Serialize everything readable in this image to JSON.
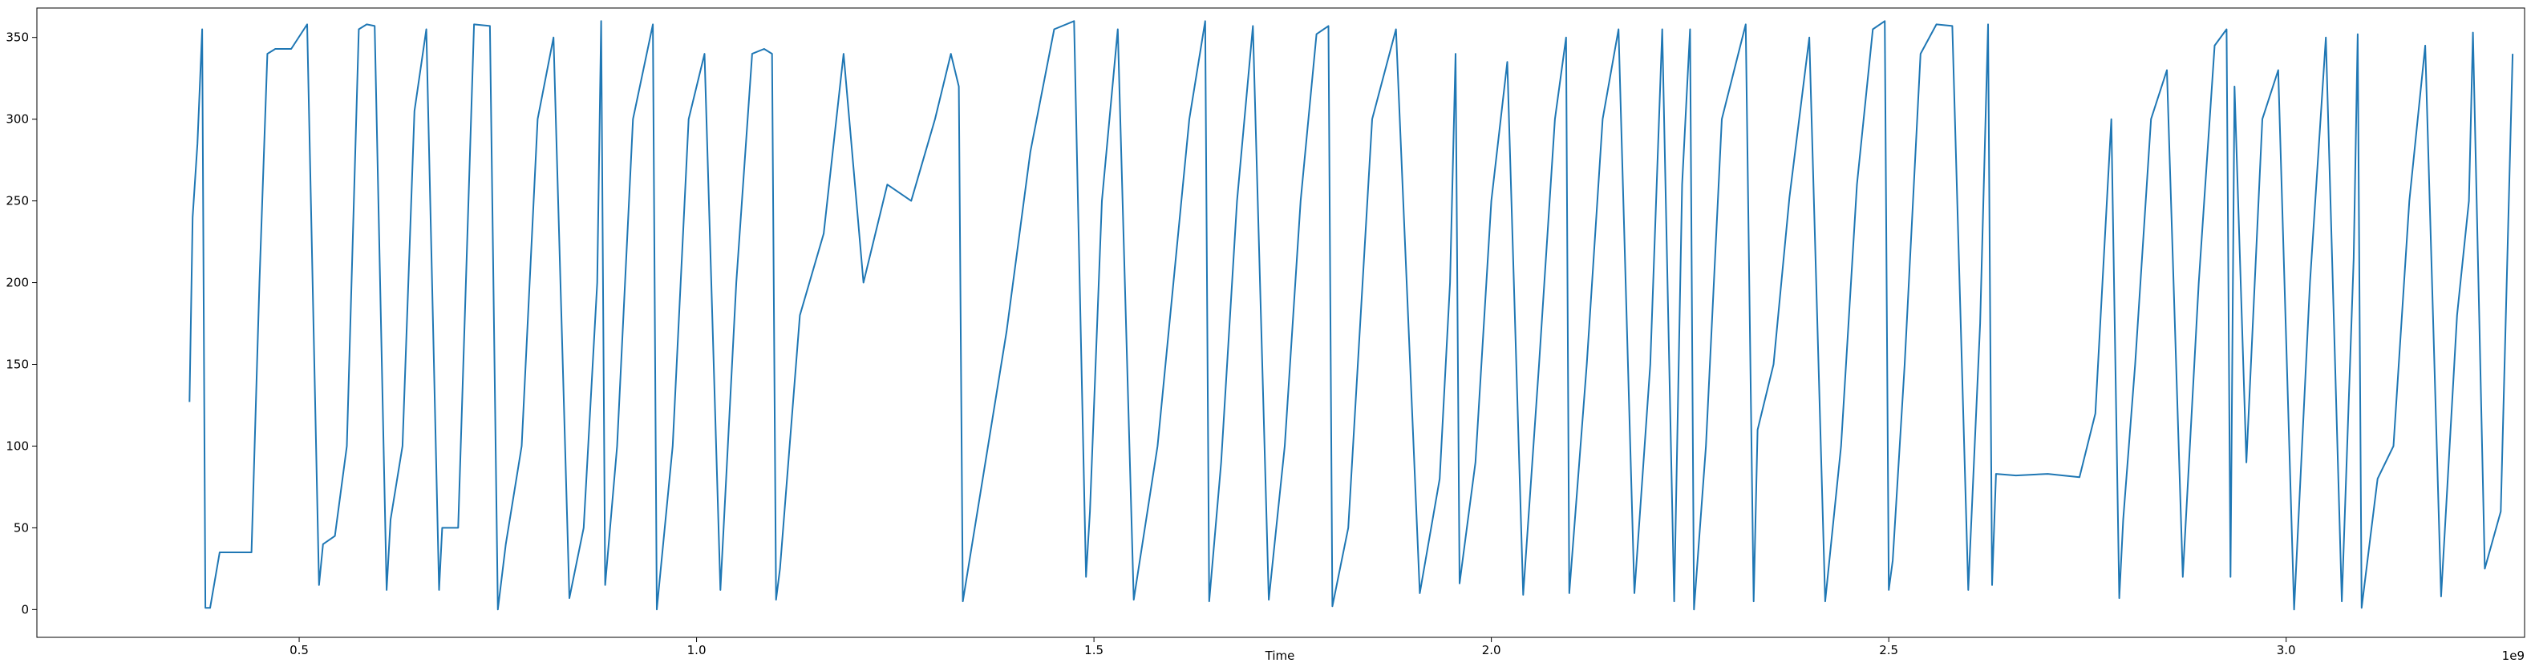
{
  "chart_data": {
    "type": "line",
    "title": "",
    "xlabel": "Time",
    "ylabel": "",
    "x_offset_label": "1e9",
    "x_scale": 1000000000,
    "xlim": [
      0.17,
      3.3
    ],
    "ylim": [
      -17,
      368
    ],
    "x_ticks": [
      {
        "value": 0.5,
        "label": "0.5"
      },
      {
        "value": 1.0,
        "label": "1.0"
      },
      {
        "value": 1.5,
        "label": "1.5"
      },
      {
        "value": 2.0,
        "label": "2.0"
      },
      {
        "value": 2.5,
        "label": "2.5"
      },
      {
        "value": 3.0,
        "label": "3.0"
      }
    ],
    "y_ticks": [
      {
        "value": 0,
        "label": "0"
      },
      {
        "value": 50,
        "label": "50"
      },
      {
        "value": 100,
        "label": "100"
      },
      {
        "value": 150,
        "label": "150"
      },
      {
        "value": 200,
        "label": "200"
      },
      {
        "value": 250,
        "label": "250"
      },
      {
        "value": 300,
        "label": "300"
      },
      {
        "value": 350,
        "label": "350"
      }
    ],
    "grid": false,
    "legend": "none",
    "series": [
      {
        "color": "#1f77b4",
        "x": [
          0.362,
          0.366,
          0.372,
          0.378,
          0.382,
          0.385,
          0.388,
          0.4,
          0.41,
          0.44,
          0.45,
          0.46,
          0.47,
          0.49,
          0.51,
          0.525,
          0.53,
          0.545,
          0.56,
          0.575,
          0.585,
          0.595,
          0.61,
          0.615,
          0.63,
          0.645,
          0.66,
          0.676,
          0.68,
          0.7,
          0.72,
          0.74,
          0.75,
          0.76,
          0.78,
          0.8,
          0.82,
          0.84,
          0.858,
          0.875,
          0.88,
          0.885,
          0.9,
          0.92,
          0.945,
          0.95,
          0.97,
          0.99,
          1.01,
          1.03,
          1.05,
          1.07,
          1.085,
          1.095,
          1.1,
          1.105,
          1.13,
          1.16,
          1.185,
          1.21,
          1.24,
          1.27,
          1.3,
          1.32,
          1.33,
          1.335,
          1.36,
          1.39,
          1.42,
          1.45,
          1.475,
          1.49,
          1.495,
          1.51,
          1.53,
          1.55,
          1.58,
          1.6,
          1.62,
          1.64,
          1.645,
          1.66,
          1.68,
          1.7,
          1.72,
          1.74,
          1.76,
          1.78,
          1.795,
          1.8,
          1.82,
          1.85,
          1.88,
          1.91,
          1.935,
          1.948,
          1.955,
          1.96,
          1.98,
          2.0,
          2.02,
          2.04,
          2.06,
          2.08,
          2.094,
          2.098,
          2.12,
          2.14,
          2.16,
          2.18,
          2.2,
          2.215,
          2.23,
          2.24,
          2.25,
          2.255,
          2.27,
          2.29,
          2.32,
          2.33,
          2.335,
          2.355,
          2.375,
          2.4,
          2.42,
          2.44,
          2.46,
          2.48,
          2.495,
          2.5,
          2.505,
          2.52,
          2.54,
          2.56,
          2.58,
          2.6,
          2.615,
          2.625,
          2.63,
          2.635,
          2.66,
          2.7,
          2.74,
          2.76,
          2.78,
          2.79,
          2.795,
          2.81,
          2.83,
          2.85,
          2.87,
          2.89,
          2.91,
          2.925,
          2.93,
          2.935,
          2.95,
          2.97,
          2.99,
          3.01,
          3.03,
          3.05,
          3.07,
          3.085,
          3.09,
          3.095,
          3.115,
          3.135,
          3.155,
          3.175,
          3.195,
          3.215,
          3.23,
          3.235,
          3.25,
          3.27,
          3.285
        ],
        "y": [
          127,
          240,
          285,
          355,
          1,
          1,
          1,
          35,
          35,
          35,
          200,
          340,
          343,
          343,
          358,
          15,
          40,
          45,
          100,
          355,
          358,
          357,
          12,
          55,
          100,
          305,
          355,
          12,
          50,
          50,
          358,
          357,
          0,
          40,
          100,
          300,
          350,
          7,
          50,
          200,
          360,
          15,
          100,
          300,
          358,
          0,
          100,
          300,
          340,
          12,
          200,
          340,
          343,
          340,
          6,
          25,
          180,
          230,
          340,
          200,
          260,
          250,
          300,
          340,
          320,
          5,
          80,
          170,
          280,
          355,
          360,
          20,
          60,
          250,
          355,
          6,
          100,
          200,
          300,
          360,
          5,
          90,
          250,
          357,
          6,
          100,
          250,
          352,
          357,
          2,
          50,
          300,
          355,
          10,
          80,
          200,
          340,
          16,
          90,
          250,
          335,
          9,
          150,
          300,
          350,
          10,
          150,
          300,
          355,
          10,
          150,
          355,
          5,
          260,
          355,
          0,
          100,
          300,
          358,
          5,
          110,
          150,
          252,
          350,
          5,
          100,
          260,
          355,
          360,
          12,
          30,
          150,
          340,
          358,
          357,
          12,
          175,
          358,
          15,
          83,
          82,
          83,
          81,
          120,
          300,
          7,
          55,
          150,
          300,
          330,
          20,
          200,
          345,
          355,
          20,
          320,
          90,
          300,
          330,
          0,
          200,
          350,
          5,
          215,
          352,
          1,
          80,
          100,
          250,
          345,
          8,
          180,
          250,
          353,
          25,
          60,
          340
        ]
      }
    ]
  }
}
